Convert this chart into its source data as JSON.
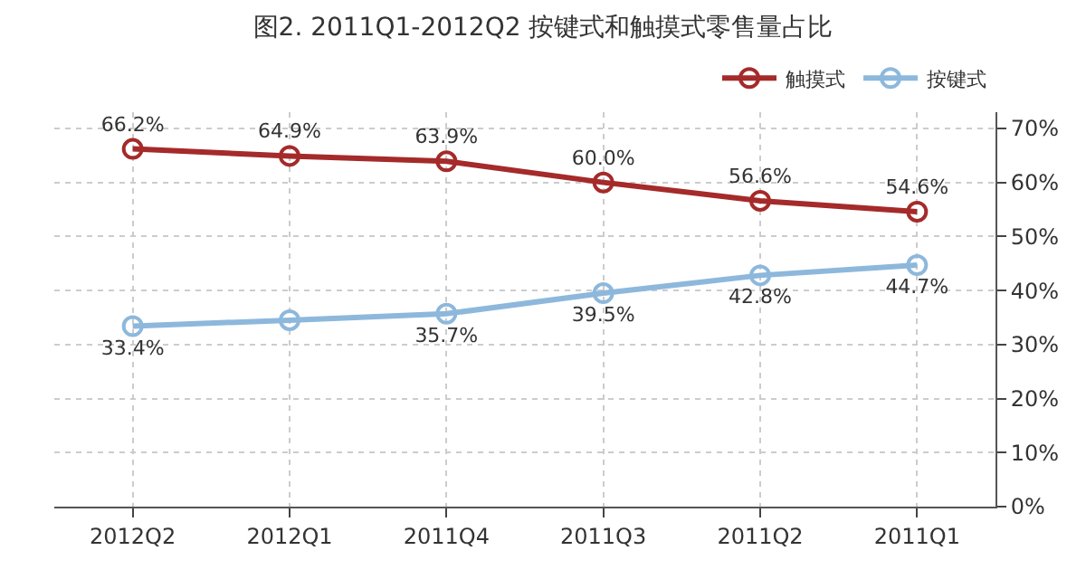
{
  "chart_data": {
    "type": "line",
    "title": "图2. 2011Q1-2012Q2 按键式和触摸式零售量占比",
    "categories": [
      "2012Q2",
      "2012Q1",
      "2011Q4",
      "2011Q3",
      "2011Q2",
      "2011Q1"
    ],
    "series": [
      {
        "name": "触摸式",
        "color": "#a52a2a",
        "values": [
          66.2,
          64.9,
          63.9,
          60.0,
          56.6,
          54.6
        ],
        "value_labels": [
          "66.2%",
          "64.9%",
          "63.9%",
          "60.0%",
          "56.6%",
          "54.6%"
        ]
      },
      {
        "name": "按键式",
        "color": "#8db8dc",
        "values": [
          33.4,
          34.5,
          35.7,
          39.5,
          42.8,
          44.7
        ],
        "value_labels": [
          "33.4%",
          null,
          "35.7%",
          "39.5%",
          "42.8%",
          "44.7%"
        ]
      }
    ],
    "ylim": [
      0,
      73
    ],
    "yticks": [
      {
        "value": 0,
        "label": "0%"
      },
      {
        "value": 10,
        "label": "10%"
      },
      {
        "value": 20,
        "label": "20%"
      },
      {
        "value": 30,
        "label": "30%"
      },
      {
        "value": 40,
        "label": "40%"
      },
      {
        "value": 50,
        "label": "50%"
      },
      {
        "value": 60,
        "label": "60%"
      },
      {
        "value": 70,
        "label": "70%"
      }
    ],
    "grid": true,
    "legend": "top right",
    "marker": "circle",
    "line_style": "solid"
  }
}
